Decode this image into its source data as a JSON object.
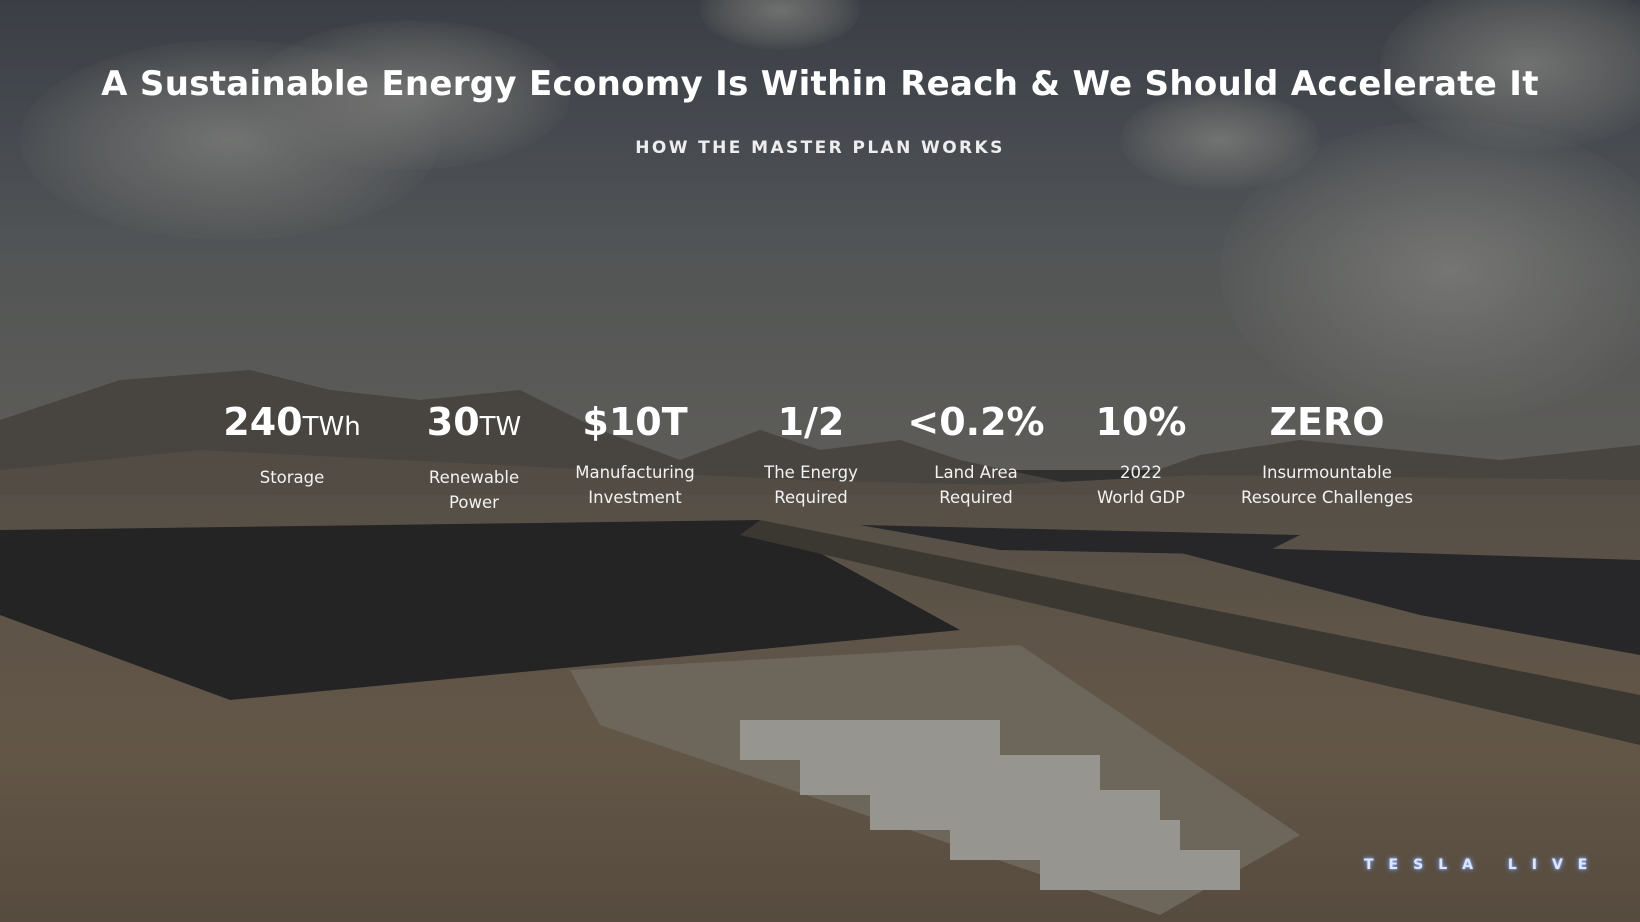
{
  "slide": {
    "title": "A Sustainable Energy Economy Is Within Reach & We Should Accelerate It",
    "subtitle": "HOW THE MASTER PLAN WORKS"
  },
  "stats": [
    {
      "value": "240",
      "unit": "TWh",
      "label": "Storage"
    },
    {
      "value": "30",
      "unit": "TW",
      "label": "Renewable\nPower"
    },
    {
      "value": "$10T",
      "unit": "",
      "label": "Manufacturing\nInvestment"
    },
    {
      "value": "1/2",
      "unit": "",
      "label": "The Energy\nRequired"
    },
    {
      "value": "<0.2%",
      "unit": "",
      "label": "Land Area\nRequired"
    },
    {
      "value": "10%",
      "unit": "",
      "label": "2022\nWorld GDP"
    },
    {
      "value": "ZERO",
      "unit": "",
      "label": "Insurmountable\nResource Challenges"
    }
  ],
  "logo": {
    "text": "TESLA LIVE",
    "color": "#dbe6ff"
  }
}
